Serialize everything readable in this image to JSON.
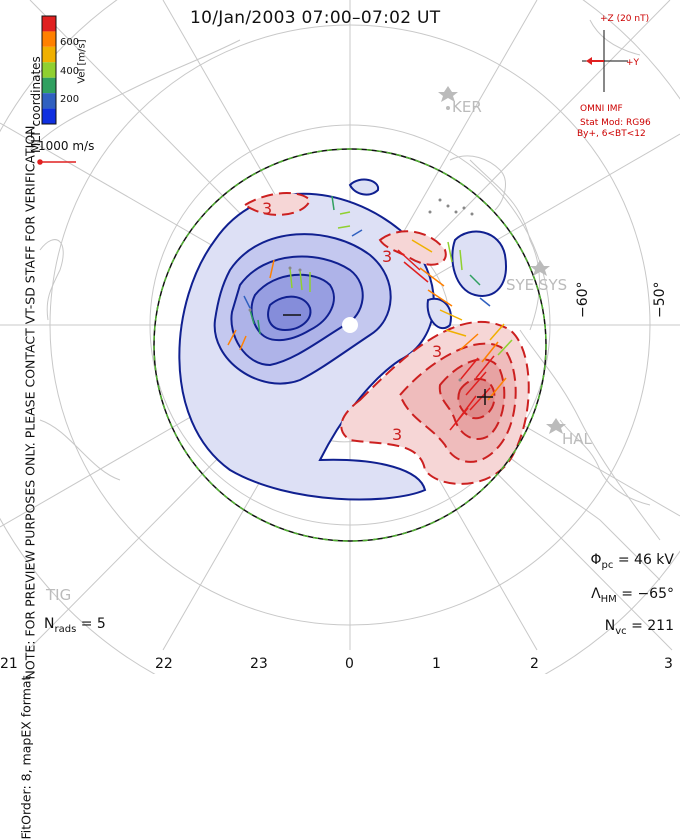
{
  "title": "10/Jan/2003 07:00–07:02 UT",
  "side_note": "NOTE: FOR PREVIEW PURPOSES ONLY. PLEASE CONTACT VT-SD STAFF FOR VERIFICATION.",
  "fit_note": "FitOrder: 8, mapEX format",
  "coordinates_label": "MLT coordinates",
  "colorbar": {
    "label": "Vel [m/s]",
    "ticks": [
      "600",
      "400",
      "200"
    ],
    "colors": [
      "#e02020",
      "#ff8000",
      "#f0b000",
      "#90d030",
      "#30a060",
      "#3060c0",
      "#1030e0"
    ]
  },
  "velocity_scale": "1000 m/s",
  "imf": {
    "z_label": "+Z (20 nT)",
    "y_label": "+Y",
    "source": "OMNI IMF",
    "model": "Stat Mod: RG96",
    "condition": "By+, 6<BT<12"
  },
  "stats": {
    "phi_pc": "Φpc = 46 kV",
    "lambda_hm": "ΛHM = −65°",
    "n_vc": "Nvc = 211",
    "n_rads": "Nrads = 5"
  },
  "stats_parts": {
    "phi_sym": "Φ",
    "phi_sub": "pc",
    "phi_val": " = 46 kV",
    "lam_sym": "Λ",
    "lam_sub": "HM",
    "lam_val": " = −65°",
    "nvc_sym": "N",
    "nvc_sub": "vc",
    "nvc_val": " = 211",
    "nr_sym": "N",
    "nr_sub": "rads",
    "nr_val": " = 5"
  },
  "mlt_hours": [
    "21",
    "22",
    "23",
    "0",
    "1",
    "2",
    "3"
  ],
  "latitudes": [
    "−60°",
    "−50°"
  ],
  "radar_sites": [
    "KER",
    "SYE SYS",
    "HAL",
    "TIG"
  ],
  "contour_labels": [
    "3",
    "3",
    "3",
    "3"
  ],
  "colors": {
    "positive_contour": "#cc2020",
    "negative_contour": "#102090",
    "boundary": "#50b030"
  }
}
